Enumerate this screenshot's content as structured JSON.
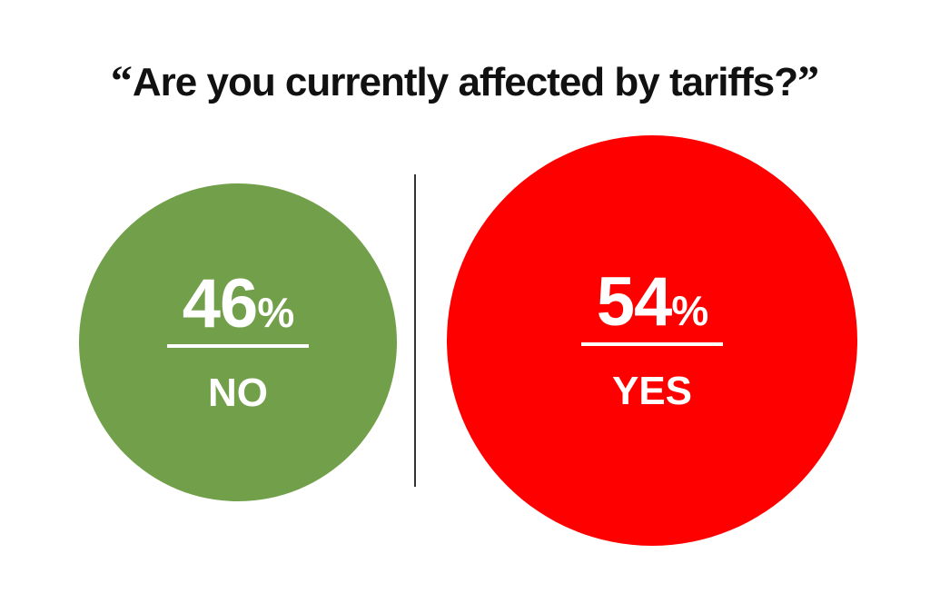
{
  "chart_data": {
    "type": "bubble",
    "title_open_quote": "“",
    "title": "Are you currently affected by tariffs?",
    "title_close_quote": "”",
    "unit": "%",
    "categories": [
      "NO",
      "YES"
    ],
    "values": [
      46,
      54
    ],
    "colors": [
      "#72a04a",
      "#ff0000"
    ]
  }
}
